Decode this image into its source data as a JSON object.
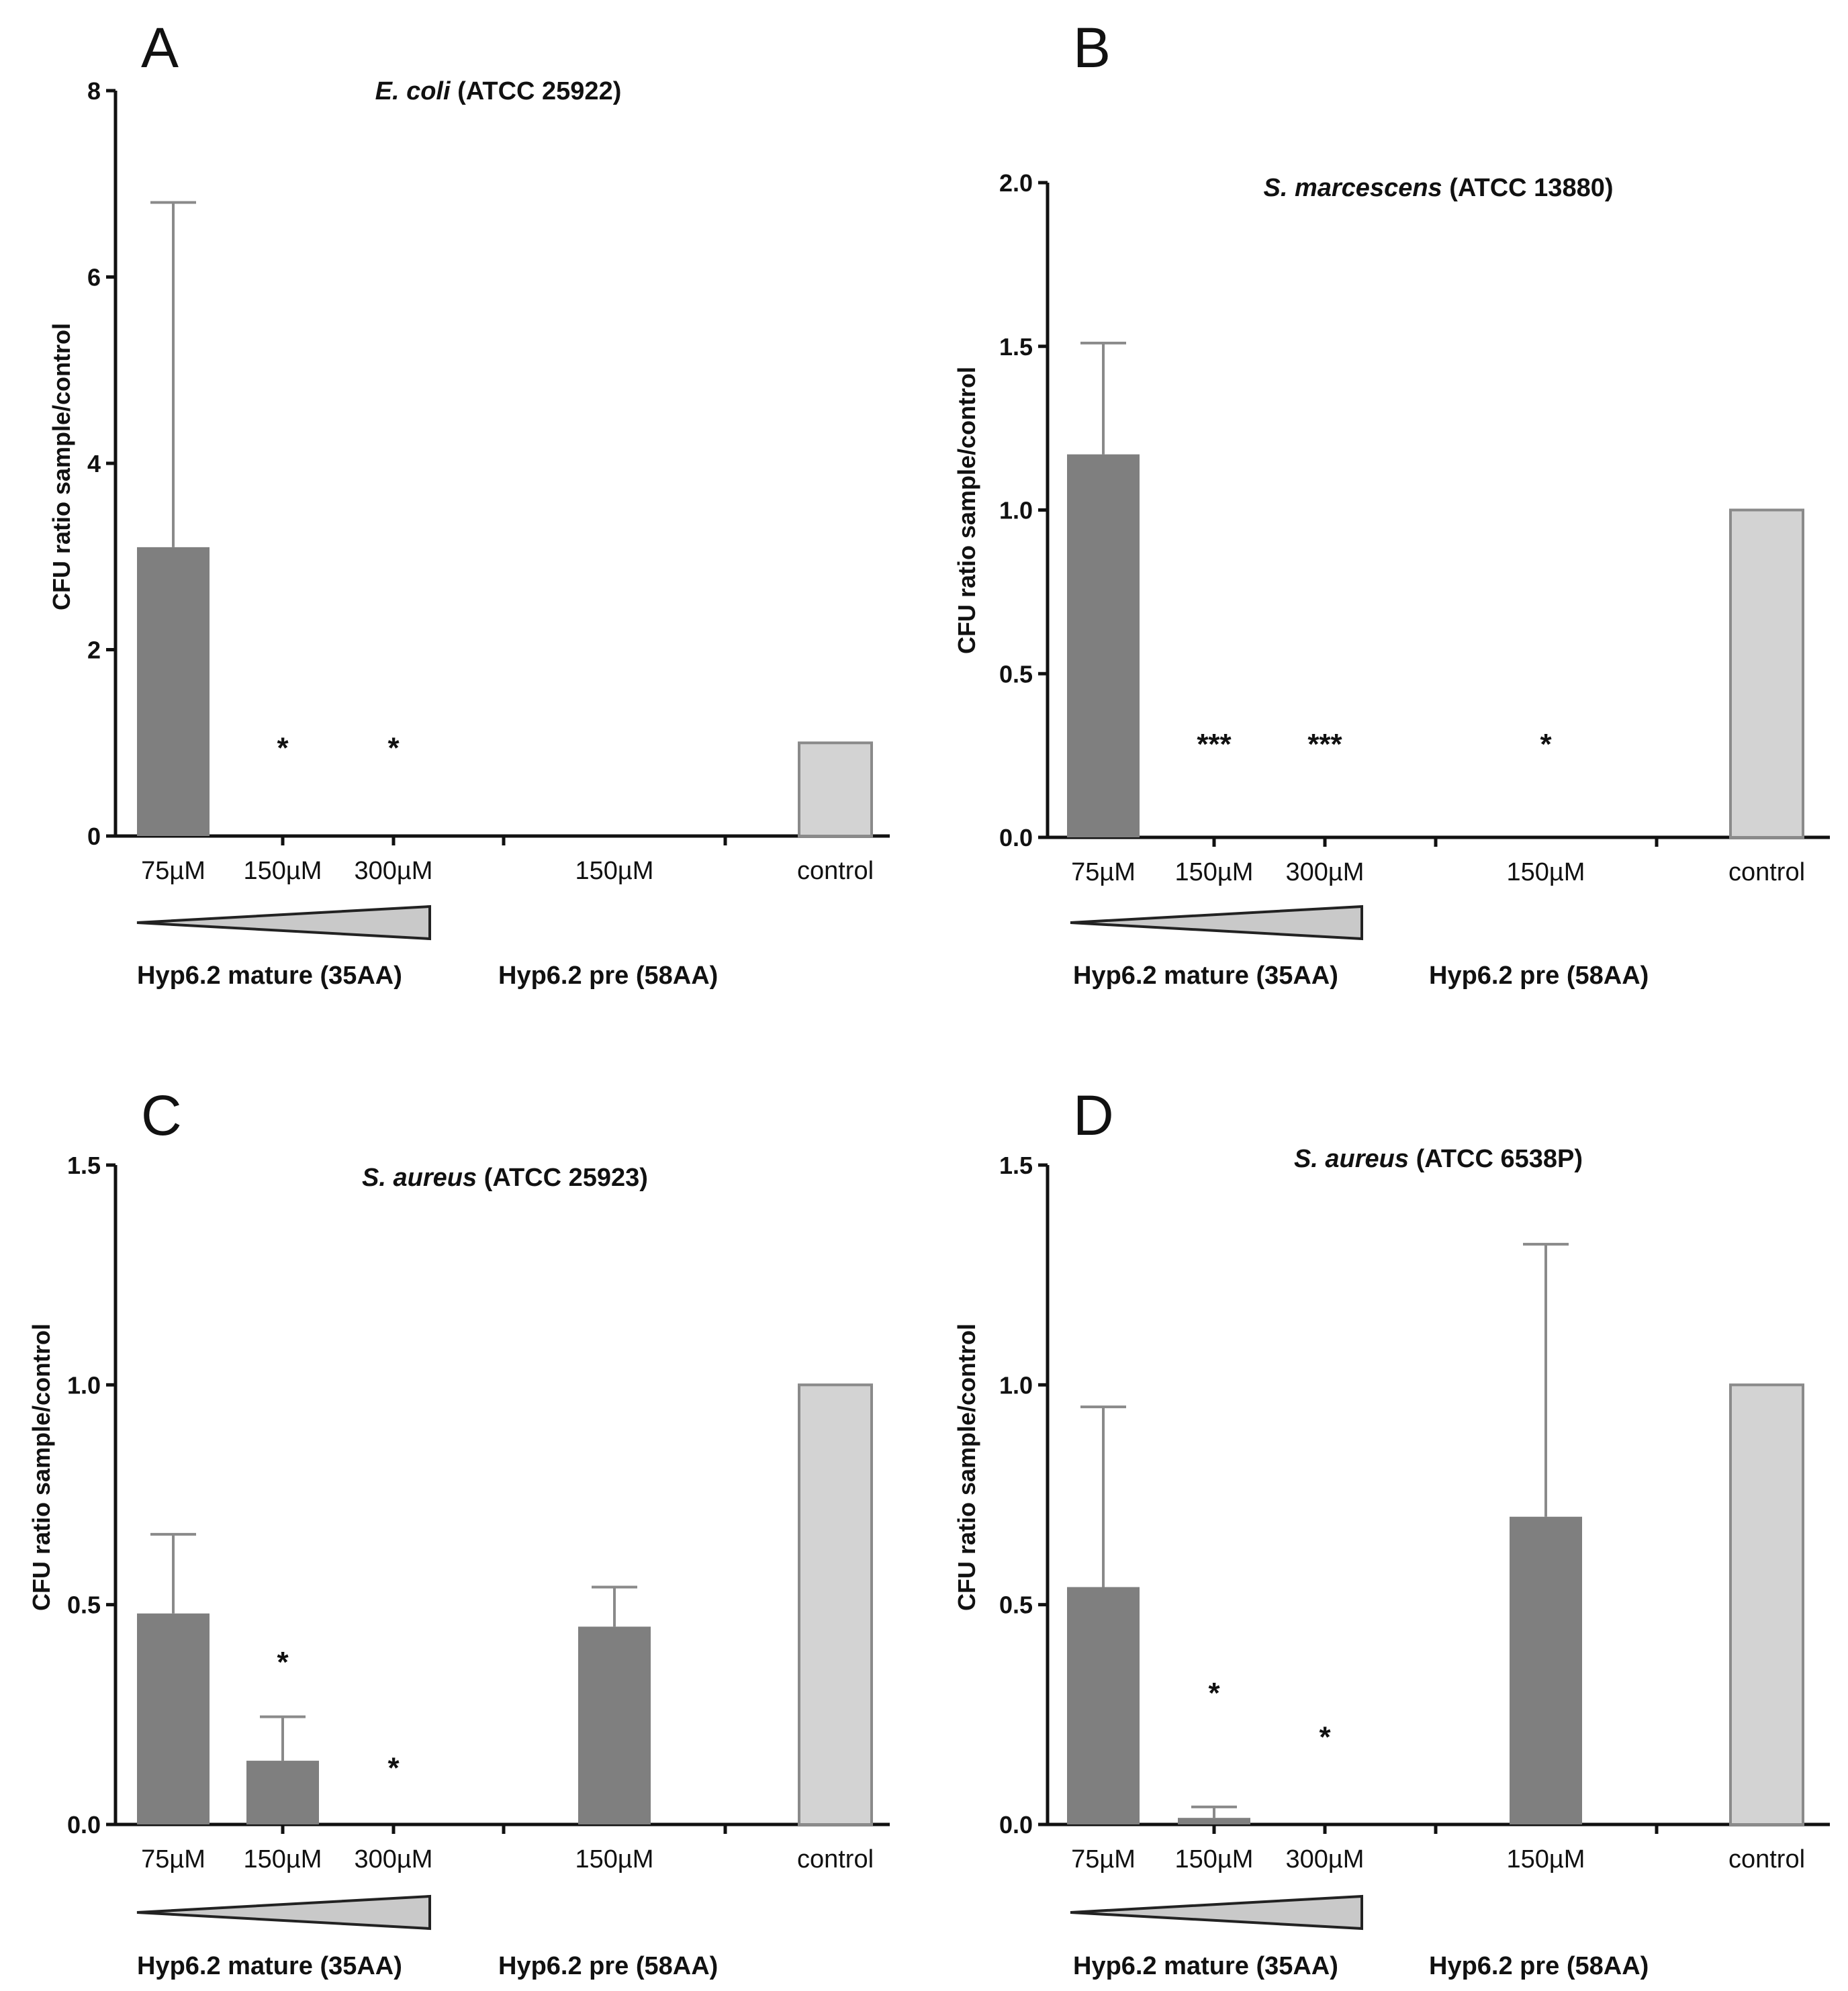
{
  "chart_data": [
    {
      "panel": "A",
      "type": "bar",
      "title_italic": "E. coli",
      "title_rest": " (ATCC 25922)",
      "ylabel": "CFU ratio sample/control",
      "ylim": [
        0,
        8
      ],
      "yticks": [
        "0",
        "2",
        "4",
        "6",
        "8"
      ],
      "categories": [
        "75µM",
        "150µM",
        "300µM",
        "150µM",
        "control"
      ],
      "values": [
        3.1,
        0,
        0,
        0,
        1.0
      ],
      "errors": [
        3.7,
        null,
        null,
        null,
        null
      ],
      "stars": [
        "",
        "*",
        "*",
        "",
        ""
      ],
      "star_values": [
        null,
        1.0,
        1.0,
        null,
        null
      ],
      "bar_colors": [
        "#7f7f7f",
        "#7f7f7f",
        "#7f7f7f",
        "#7f7f7f",
        "#d3d3d3"
      ],
      "group_labels": [
        "Hyp6.2 mature (35AA)",
        "Hyp6.2 pre (58AA)"
      ]
    },
    {
      "panel": "B",
      "type": "bar",
      "title_italic": "S. marcescens",
      "title_rest": " (ATCC 13880)",
      "ylabel": "CFU ratio sample/control",
      "ylim": [
        0,
        2.0
      ],
      "yticks": [
        "0.0",
        "0.5",
        "1.0",
        "1.5",
        "2.0"
      ],
      "categories": [
        "75µM",
        "150µM",
        "300µM",
        "150µM",
        "control"
      ],
      "values": [
        1.17,
        0,
        0,
        0,
        1.0
      ],
      "errors": [
        0.34,
        null,
        null,
        null,
        null
      ],
      "stars": [
        "",
        "***",
        "***",
        "*",
        ""
      ],
      "star_values": [
        null,
        0.3,
        0.3,
        0.3,
        null
      ],
      "bar_colors": [
        "#7f7f7f",
        "#7f7f7f",
        "#7f7f7f",
        "#7f7f7f",
        "#d3d3d3"
      ],
      "group_labels": [
        "Hyp6.2 mature (35AA)",
        "Hyp6.2 pre (58AA)"
      ]
    },
    {
      "panel": "C",
      "type": "bar",
      "title_italic": "S. aureus",
      "title_rest": " (ATCC 25923)",
      "ylabel": "CFU ratio sample/control",
      "ylim": [
        0,
        1.5
      ],
      "yticks": [
        "0.0",
        "0.5",
        "1.0",
        "1.5"
      ],
      "categories": [
        "75µM",
        "150µM",
        "300µM",
        "150µM",
        "control"
      ],
      "values": [
        0.48,
        0.145,
        0,
        0.45,
        1.0
      ],
      "errors": [
        0.18,
        0.1,
        null,
        0.09,
        null
      ],
      "stars": [
        "",
        "*",
        "*",
        "",
        ""
      ],
      "star_values": [
        null,
        0.38,
        0.14,
        null,
        null
      ],
      "bar_colors": [
        "#7f7f7f",
        "#7f7f7f",
        "#7f7f7f",
        "#7f7f7f",
        "#d3d3d3"
      ],
      "group_labels": [
        "Hyp6.2 mature (35AA)",
        "Hyp6.2 pre (58AA)"
      ]
    },
    {
      "panel": "D",
      "type": "bar",
      "title_italic": "S. aureus",
      "title_rest": " (ATCC 6538P)",
      "ylabel": "CFU ratio sample/control",
      "ylim": [
        0,
        1.5
      ],
      "yticks": [
        "0.0",
        "0.5",
        "1.0",
        "1.5"
      ],
      "categories": [
        "75µM",
        "150µM",
        "300µM",
        "150µM",
        "control"
      ],
      "values": [
        0.54,
        0.015,
        0,
        0.7,
        1.0
      ],
      "errors": [
        0.41,
        0.025,
        null,
        0.62,
        null
      ],
      "stars": [
        "",
        "*",
        "*",
        "",
        ""
      ],
      "star_values": [
        null,
        0.31,
        0.21,
        null,
        null
      ],
      "bar_colors": [
        "#7f7f7f",
        "#7f7f7f",
        "#7f7f7f",
        "#7f7f7f",
        "#d3d3d3"
      ],
      "group_labels": [
        "Hyp6.2 mature (35AA)",
        "Hyp6.2 pre (58AA)"
      ]
    }
  ]
}
